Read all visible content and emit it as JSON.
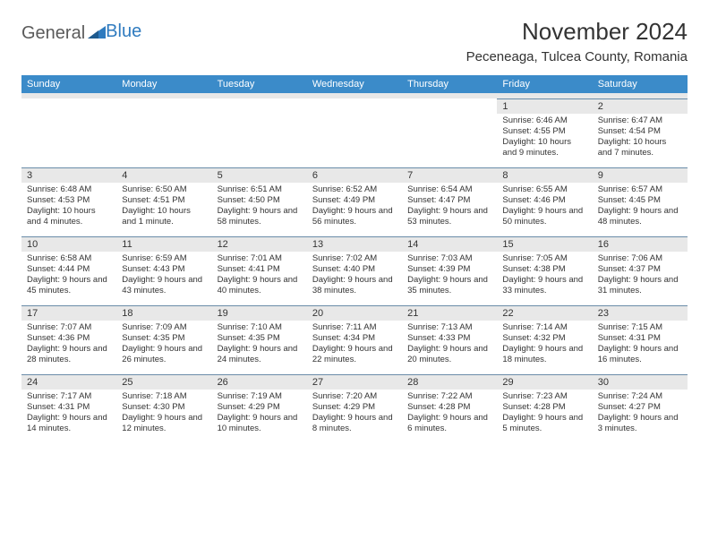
{
  "logo": {
    "text1": "General",
    "text2": "Blue"
  },
  "title": "November 2024",
  "location": "Peceneaga, Tulcea County, Romania",
  "colors": {
    "header_bg": "#3b8bc9",
    "header_text": "#ffffff",
    "date_bar_bg": "#e8e8e8",
    "date_bar_border": "#6a8ca8",
    "body_text": "#333333",
    "logo_gray": "#5a5a5a",
    "logo_blue": "#2f7bbf"
  },
  "day_names": [
    "Sunday",
    "Monday",
    "Tuesday",
    "Wednesday",
    "Thursday",
    "Friday",
    "Saturday"
  ],
  "weeks": [
    [
      {
        "date": "",
        "sunrise": "",
        "sunset": "",
        "daylight": ""
      },
      {
        "date": "",
        "sunrise": "",
        "sunset": "",
        "daylight": ""
      },
      {
        "date": "",
        "sunrise": "",
        "sunset": "",
        "daylight": ""
      },
      {
        "date": "",
        "sunrise": "",
        "sunset": "",
        "daylight": ""
      },
      {
        "date": "",
        "sunrise": "",
        "sunset": "",
        "daylight": ""
      },
      {
        "date": "1",
        "sunrise": "Sunrise: 6:46 AM",
        "sunset": "Sunset: 4:55 PM",
        "daylight": "Daylight: 10 hours and 9 minutes."
      },
      {
        "date": "2",
        "sunrise": "Sunrise: 6:47 AM",
        "sunset": "Sunset: 4:54 PM",
        "daylight": "Daylight: 10 hours and 7 minutes."
      }
    ],
    [
      {
        "date": "3",
        "sunrise": "Sunrise: 6:48 AM",
        "sunset": "Sunset: 4:53 PM",
        "daylight": "Daylight: 10 hours and 4 minutes."
      },
      {
        "date": "4",
        "sunrise": "Sunrise: 6:50 AM",
        "sunset": "Sunset: 4:51 PM",
        "daylight": "Daylight: 10 hours and 1 minute."
      },
      {
        "date": "5",
        "sunrise": "Sunrise: 6:51 AM",
        "sunset": "Sunset: 4:50 PM",
        "daylight": "Daylight: 9 hours and 58 minutes."
      },
      {
        "date": "6",
        "sunrise": "Sunrise: 6:52 AM",
        "sunset": "Sunset: 4:49 PM",
        "daylight": "Daylight: 9 hours and 56 minutes."
      },
      {
        "date": "7",
        "sunrise": "Sunrise: 6:54 AM",
        "sunset": "Sunset: 4:47 PM",
        "daylight": "Daylight: 9 hours and 53 minutes."
      },
      {
        "date": "8",
        "sunrise": "Sunrise: 6:55 AM",
        "sunset": "Sunset: 4:46 PM",
        "daylight": "Daylight: 9 hours and 50 minutes."
      },
      {
        "date": "9",
        "sunrise": "Sunrise: 6:57 AM",
        "sunset": "Sunset: 4:45 PM",
        "daylight": "Daylight: 9 hours and 48 minutes."
      }
    ],
    [
      {
        "date": "10",
        "sunrise": "Sunrise: 6:58 AM",
        "sunset": "Sunset: 4:44 PM",
        "daylight": "Daylight: 9 hours and 45 minutes."
      },
      {
        "date": "11",
        "sunrise": "Sunrise: 6:59 AM",
        "sunset": "Sunset: 4:43 PM",
        "daylight": "Daylight: 9 hours and 43 minutes."
      },
      {
        "date": "12",
        "sunrise": "Sunrise: 7:01 AM",
        "sunset": "Sunset: 4:41 PM",
        "daylight": "Daylight: 9 hours and 40 minutes."
      },
      {
        "date": "13",
        "sunrise": "Sunrise: 7:02 AM",
        "sunset": "Sunset: 4:40 PM",
        "daylight": "Daylight: 9 hours and 38 minutes."
      },
      {
        "date": "14",
        "sunrise": "Sunrise: 7:03 AM",
        "sunset": "Sunset: 4:39 PM",
        "daylight": "Daylight: 9 hours and 35 minutes."
      },
      {
        "date": "15",
        "sunrise": "Sunrise: 7:05 AM",
        "sunset": "Sunset: 4:38 PM",
        "daylight": "Daylight: 9 hours and 33 minutes."
      },
      {
        "date": "16",
        "sunrise": "Sunrise: 7:06 AM",
        "sunset": "Sunset: 4:37 PM",
        "daylight": "Daylight: 9 hours and 31 minutes."
      }
    ],
    [
      {
        "date": "17",
        "sunrise": "Sunrise: 7:07 AM",
        "sunset": "Sunset: 4:36 PM",
        "daylight": "Daylight: 9 hours and 28 minutes."
      },
      {
        "date": "18",
        "sunrise": "Sunrise: 7:09 AM",
        "sunset": "Sunset: 4:35 PM",
        "daylight": "Daylight: 9 hours and 26 minutes."
      },
      {
        "date": "19",
        "sunrise": "Sunrise: 7:10 AM",
        "sunset": "Sunset: 4:35 PM",
        "daylight": "Daylight: 9 hours and 24 minutes."
      },
      {
        "date": "20",
        "sunrise": "Sunrise: 7:11 AM",
        "sunset": "Sunset: 4:34 PM",
        "daylight": "Daylight: 9 hours and 22 minutes."
      },
      {
        "date": "21",
        "sunrise": "Sunrise: 7:13 AM",
        "sunset": "Sunset: 4:33 PM",
        "daylight": "Daylight: 9 hours and 20 minutes."
      },
      {
        "date": "22",
        "sunrise": "Sunrise: 7:14 AM",
        "sunset": "Sunset: 4:32 PM",
        "daylight": "Daylight: 9 hours and 18 minutes."
      },
      {
        "date": "23",
        "sunrise": "Sunrise: 7:15 AM",
        "sunset": "Sunset: 4:31 PM",
        "daylight": "Daylight: 9 hours and 16 minutes."
      }
    ],
    [
      {
        "date": "24",
        "sunrise": "Sunrise: 7:17 AM",
        "sunset": "Sunset: 4:31 PM",
        "daylight": "Daylight: 9 hours and 14 minutes."
      },
      {
        "date": "25",
        "sunrise": "Sunrise: 7:18 AM",
        "sunset": "Sunset: 4:30 PM",
        "daylight": "Daylight: 9 hours and 12 minutes."
      },
      {
        "date": "26",
        "sunrise": "Sunrise: 7:19 AM",
        "sunset": "Sunset: 4:29 PM",
        "daylight": "Daylight: 9 hours and 10 minutes."
      },
      {
        "date": "27",
        "sunrise": "Sunrise: 7:20 AM",
        "sunset": "Sunset: 4:29 PM",
        "daylight": "Daylight: 9 hours and 8 minutes."
      },
      {
        "date": "28",
        "sunrise": "Sunrise: 7:22 AM",
        "sunset": "Sunset: 4:28 PM",
        "daylight": "Daylight: 9 hours and 6 minutes."
      },
      {
        "date": "29",
        "sunrise": "Sunrise: 7:23 AM",
        "sunset": "Sunset: 4:28 PM",
        "daylight": "Daylight: 9 hours and 5 minutes."
      },
      {
        "date": "30",
        "sunrise": "Sunrise: 7:24 AM",
        "sunset": "Sunset: 4:27 PM",
        "daylight": "Daylight: 9 hours and 3 minutes."
      }
    ]
  ]
}
